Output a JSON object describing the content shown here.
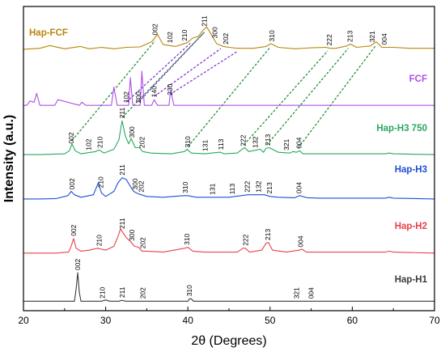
{
  "chart_data": {
    "type": "line",
    "xlabel": "2θ (Degrees)",
    "ylabel": "Intensity (a.u.)",
    "xlim": [
      20,
      70
    ],
    "x_ticks": [
      20,
      30,
      40,
      50,
      60,
      70
    ],
    "grid": false,
    "legend": "inline labels at right of each pattern",
    "series": [
      {
        "name": "Hap-FCF",
        "color": "#b8860b",
        "x": [
          20,
          22,
          23.2,
          25,
          26.9,
          28,
          29.5,
          31,
          32.5,
          34.2,
          35.6,
          36.3,
          37.0,
          38.5,
          39.9,
          40.6,
          41.3,
          41.9,
          42.3,
          42.7,
          43.5,
          44.3,
          45,
          46,
          48,
          49.5,
          50.1,
          51,
          53,
          55,
          56.8,
          57.3,
          58,
          59.3,
          59.8,
          60.5,
          62.2,
          62.9,
          63.6,
          65,
          67,
          70
        ],
        "y": [
          1,
          2,
          5,
          1.5,
          4,
          1.5,
          3,
          1.5,
          3,
          3.5,
          9,
          17,
          6,
          4,
          8,
          13,
          15,
          22,
          25,
          19,
          7,
          4,
          3,
          2,
          2,
          4,
          7,
          3,
          1.5,
          2.5,
          3,
          2,
          2,
          4.5,
          6.5,
          3,
          4.5,
          9,
          3,
          3,
          2,
          2
        ]
      },
      {
        "name": "FCF",
        "color": "#b04ee8",
        "x": [
          20,
          20.4,
          20.8,
          21.3,
          21.6,
          22,
          23.8,
          24.2,
          26.8,
          27.1,
          27.6,
          30.7,
          31,
          31.4,
          32.8,
          33.0,
          33.3,
          34.2,
          34.4,
          34.7,
          35.6,
          35.9,
          36.3,
          37.7,
          37.9,
          38.3,
          41,
          44,
          70
        ],
        "y": [
          1,
          1,
          8,
          6,
          20,
          1,
          1,
          10,
          1,
          6,
          1,
          1,
          30,
          1,
          1,
          45,
          1,
          1,
          55,
          1,
          1,
          10,
          1,
          1,
          25,
          1,
          1,
          1,
          1
        ]
      },
      {
        "name": "Hap-H3 750",
        "color": "#2aa760",
        "x": [
          20,
          22,
          25,
          25.6,
          25.9,
          26.3,
          27,
          28.8,
          29.2,
          29.8,
          31,
          31.6,
          32.0,
          32.4,
          32.8,
          33.1,
          33.6,
          34.1,
          34.5,
          35.5,
          38,
          39.6,
          39.9,
          40.4,
          42,
          43.8,
          44,
          44.4,
          46,
          46.6,
          46.9,
          47.4,
          48.4,
          48.8,
          49.2,
          49.5,
          49.9,
          51,
          52.4,
          52.8,
          53.2,
          53.6,
          54,
          56,
          60,
          64,
          64.5,
          65,
          70
        ],
        "y": [
          1,
          1,
          2,
          6,
          15,
          6,
          2,
          5,
          7,
          3,
          8,
          20,
          45,
          25,
          15,
          22,
          10,
          10,
          5,
          3,
          2,
          5,
          8,
          3,
          2,
          4,
          4,
          2,
          3,
          8,
          10,
          5,
          7,
          8,
          4,
          9,
          10,
          4,
          3,
          5,
          4,
          6,
          2,
          2,
          2,
          2,
          3,
          2,
          1
        ]
      },
      {
        "name": "Hap-H3",
        "color": "#1f4fd1",
        "x": [
          20,
          22,
          24,
          25.4,
          25.8,
          26.2,
          27,
          28.5,
          29.1,
          29.5,
          30,
          31,
          31.5,
          32.0,
          32.5,
          33.0,
          33.4,
          34,
          35,
          37,
          39.5,
          40,
          41,
          43,
          44,
          45,
          46.5,
          47.3,
          48.2,
          49.3,
          50,
          51,
          53,
          53.6,
          54.5,
          56,
          60,
          64,
          64.5,
          65,
          70
        ],
        "y": [
          1,
          1,
          1.5,
          5,
          10,
          6,
          3,
          6,
          20,
          8,
          4,
          10,
          20,
          26,
          24,
          16,
          10,
          7,
          4,
          3,
          5,
          5,
          3,
          3,
          3,
          3,
          5,
          6,
          6,
          6,
          4,
          3,
          2.5,
          5,
          2.5,
          2,
          2,
          2,
          3,
          2,
          1
        ]
      },
      {
        "name": "Hap-H2",
        "color": "#e8424a",
        "x": [
          20,
          24,
          25.5,
          25.8,
          26.1,
          26.4,
          27,
          28,
          29,
          30,
          31,
          31.5,
          31.8,
          32.1,
          32.5,
          33.0,
          33.5,
          34.0,
          34.4,
          35,
          37,
          39.6,
          40,
          40.6,
          42,
          46,
          46.7,
          47,
          47.5,
          49,
          49.5,
          49.8,
          50.3,
          52,
          53.5,
          53.9,
          54.4,
          56,
          60,
          64,
          64.5,
          65,
          70
        ],
        "y": [
          1,
          1,
          2,
          8,
          16,
          6,
          3,
          4,
          6,
          4,
          8,
          18,
          26,
          22,
          17,
          13,
          8,
          7,
          3,
          3,
          2,
          6,
          7,
          3,
          2,
          2,
          6,
          6,
          2,
          4,
          11,
          12,
          4,
          2,
          4,
          5,
          2,
          2,
          2,
          2,
          3,
          2,
          1
        ]
      },
      {
        "name": "Hap-H1",
        "color": "#3a3a3a",
        "x": [
          20,
          26.2,
          26.4,
          26.6,
          26.8,
          27,
          29.5,
          30,
          30.5,
          31.6,
          32,
          32.4,
          34,
          40,
          40.2,
          40.4,
          40.7,
          50,
          53,
          70
        ],
        "y": [
          1,
          1,
          20,
          48,
          15,
          1,
          1,
          3,
          1,
          1,
          2.5,
          1,
          1,
          1,
          5,
          5,
          1,
          1,
          1,
          1
        ]
      }
    ],
    "peak_labels": [
      {
        "series": "Hap-FCF",
        "x": 36.0,
        "text": "002"
      },
      {
        "series": "Hap-FCF",
        "x": 37.8,
        "text": "102"
      },
      {
        "series": "Hap-FCF",
        "x": 39.6,
        "text": "210"
      },
      {
        "series": "Hap-FCF",
        "x": 42.0,
        "text": "211"
      },
      {
        "series": "Hap-FCF",
        "x": 43.3,
        "text": "300"
      },
      {
        "series": "Hap-FCF",
        "x": 44.6,
        "text": "202"
      },
      {
        "series": "Hap-FCF",
        "x": 50.2,
        "text": "310"
      },
      {
        "series": "Hap-FCF",
        "x": 57.2,
        "text": "222"
      },
      {
        "series": "Hap-FCF",
        "x": 59.7,
        "text": "213"
      },
      {
        "series": "Hap-FCF",
        "x": 62.4,
        "text": "321"
      },
      {
        "series": "Hap-FCF",
        "x": 63.9,
        "text": "004"
      },
      {
        "series": "FCF",
        "x": 32.5,
        "text": "102"
      },
      {
        "series": "FCF",
        "x": 34.0,
        "text": "200"
      },
      {
        "series": "FCF",
        "x": 35.9,
        "text": "140"
      },
      {
        "series": "FCF",
        "x": 37.8,
        "text": "230"
      },
      {
        "series": "Hap-H3 750",
        "x": 25.8,
        "text": "002"
      },
      {
        "series": "Hap-H3 750",
        "x": 27.9,
        "text": "102"
      },
      {
        "series": "Hap-H3 750",
        "x": 29.3,
        "text": "210"
      },
      {
        "series": "Hap-H3 750",
        "x": 32.0,
        "text": "211"
      },
      {
        "series": "Hap-H3 750",
        "x": 33.2,
        "text": "300"
      },
      {
        "series": "Hap-H3 750",
        "x": 34.4,
        "text": "202"
      },
      {
        "series": "Hap-H3 750",
        "x": 40.0,
        "text": "310"
      },
      {
        "series": "Hap-H3 750",
        "x": 42.1,
        "text": "131"
      },
      {
        "series": "Hap-H3 750",
        "x": 44.0,
        "text": "113"
      },
      {
        "series": "Hap-H3 750",
        "x": 46.7,
        "text": "222"
      },
      {
        "series": "Hap-H3 750",
        "x": 48.2,
        "text": "132"
      },
      {
        "series": "Hap-H3 750",
        "x": 49.7,
        "text": "213"
      },
      {
        "series": "Hap-H3 750",
        "x": 52.0,
        "text": "321"
      },
      {
        "series": "Hap-H3 750",
        "x": 53.5,
        "text": "004"
      },
      {
        "series": "Hap-H3",
        "x": 25.9,
        "text": "002"
      },
      {
        "series": "Hap-H3",
        "x": 29.4,
        "text": "210"
      },
      {
        "series": "Hap-H3",
        "x": 32.0,
        "text": "211"
      },
      {
        "series": "Hap-H3",
        "x": 33.6,
        "text": "300"
      },
      {
        "series": "Hap-H3",
        "x": 34.3,
        "text": "202"
      },
      {
        "series": "Hap-H3",
        "x": 39.7,
        "text": "310"
      },
      {
        "series": "Hap-H3",
        "x": 43.0,
        "text": "131"
      },
      {
        "series": "Hap-H3",
        "x": 45.4,
        "text": "113"
      },
      {
        "series": "Hap-H3",
        "x": 47.2,
        "text": "222"
      },
      {
        "series": "Hap-H3",
        "x": 48.6,
        "text": "132"
      },
      {
        "series": "Hap-H3",
        "x": 49.9,
        "text": "213"
      },
      {
        "series": "Hap-H3",
        "x": 53.5,
        "text": "004"
      },
      {
        "series": "Hap-H2",
        "x": 26.1,
        "text": "002"
      },
      {
        "series": "Hap-H2",
        "x": 29.2,
        "text": "210"
      },
      {
        "series": "Hap-H2",
        "x": 32.0,
        "text": "211"
      },
      {
        "series": "Hap-H2",
        "x": 33.2,
        "text": "300"
      },
      {
        "series": "Hap-H2",
        "x": 34.5,
        "text": "202"
      },
      {
        "series": "Hap-H2",
        "x": 39.9,
        "text": "310"
      },
      {
        "series": "Hap-H2",
        "x": 47.0,
        "text": "222"
      },
      {
        "series": "Hap-H2",
        "x": 49.7,
        "text": "213"
      },
      {
        "series": "Hap-H2",
        "x": 53.7,
        "text": "004"
      },
      {
        "series": "Hap-H1",
        "x": 26.6,
        "text": "002"
      },
      {
        "series": "Hap-H1",
        "x": 29.6,
        "text": "210"
      },
      {
        "series": "Hap-H1",
        "x": 32.0,
        "text": "211"
      },
      {
        "series": "Hap-H1",
        "x": 34.5,
        "text": "202"
      },
      {
        "series": "Hap-H1",
        "x": 40.2,
        "text": "310"
      },
      {
        "series": "Hap-H1",
        "x": 53.2,
        "text": "321"
      },
      {
        "series": "Hap-H1",
        "x": 55.0,
        "text": "004"
      }
    ],
    "correspondence_lines": [
      {
        "color": "#7b2fd0",
        "from": [
          "FCF",
          32.5
        ],
        "to": [
          "Hap-FCF",
          40.3
        ]
      },
      {
        "color": "#7b2fd0",
        "from": [
          "FCF",
          34.0
        ],
        "to": [
          "Hap-FCF",
          42.0
        ]
      },
      {
        "color": "#7b2fd0",
        "from": [
          "FCF",
          35.9
        ],
        "to": [
          "Hap-FCF",
          44.0
        ]
      },
      {
        "color": "#7b2fd0",
        "from": [
          "FCF",
          37.8
        ],
        "to": [
          "Hap-FCF",
          46.0
        ]
      },
      {
        "color": "#1a8a2a",
        "from": [
          "Hap-H3 750",
          25.9
        ],
        "to": [
          "Hap-FCF",
          36.0
        ]
      },
      {
        "color": "#1a8a2a",
        "from": [
          "Hap-H3 750",
          32.0
        ],
        "to": [
          "Hap-FCF",
          42.0
        ]
      },
      {
        "color": "#1a8a2a",
        "from": [
          "Hap-H3 750",
          40.0
        ],
        "to": [
          "Hap-FCF",
          50.0
        ]
      },
      {
        "color": "#1a8a2a",
        "from": [
          "Hap-H3 750",
          46.8
        ],
        "to": [
          "Hap-FCF",
          57.0
        ]
      },
      {
        "color": "#1a8a2a",
        "from": [
          "Hap-H3 750",
          49.6
        ],
        "to": [
          "Hap-FCF",
          59.5
        ]
      },
      {
        "color": "#1a8a2a",
        "from": [
          "Hap-H3 750",
          53.4
        ],
        "to": [
          "Hap-FCF",
          62.9
        ]
      }
    ]
  }
}
